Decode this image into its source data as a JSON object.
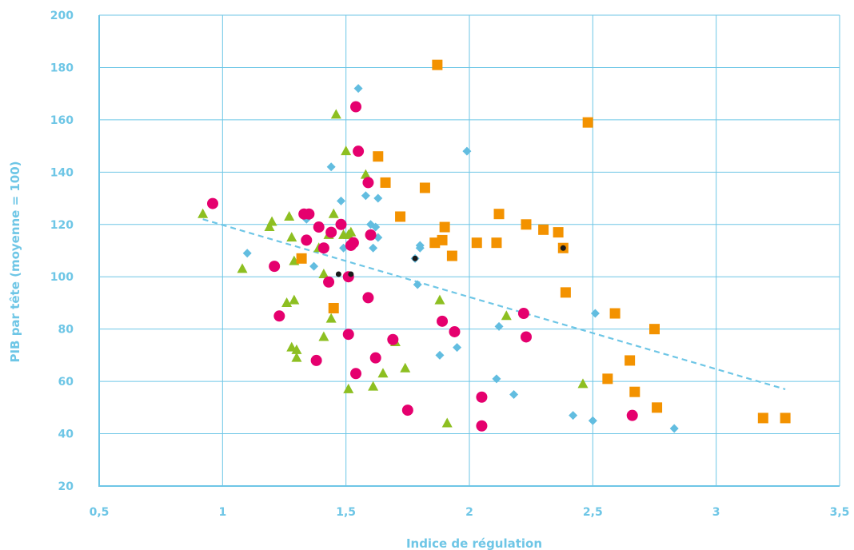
{
  "chart_data": {
    "type": "scatter",
    "title": "",
    "xlabel": "Indice de régulation",
    "ylabel": "PIB par tête (moyenne = 100)",
    "xlim": [
      0.5,
      3.5
    ],
    "ylim": [
      20,
      200
    ],
    "x_ticks": [
      "0,5",
      "1",
      "1,5",
      "2",
      "2,5",
      "3",
      "3,5"
    ],
    "y_ticks": [
      "20",
      "40",
      "60",
      "80",
      "100",
      "120",
      "140",
      "160",
      "180",
      "200"
    ],
    "grid": true,
    "legend": "none",
    "colors": {
      "axis": "#6ec6e6",
      "diamond": "#62bde0",
      "circle": "#e5006e",
      "triangle": "#8dbf21",
      "square": "#f39200",
      "black_dot": "#1a1a1a",
      "trend": "#6ec6e6"
    },
    "trendline": {
      "x": [
        0.92,
        3.28
      ],
      "y": [
        122,
        57
      ]
    },
    "series": [
      {
        "marker": "diamond",
        "x": [
          1.1,
          1.34,
          1.37,
          1.44,
          1.48,
          1.49,
          1.55,
          1.58,
          1.6,
          1.61,
          1.62,
          1.63,
          1.63,
          1.78,
          1.79,
          1.8,
          1.8,
          1.88,
          1.95,
          1.99,
          2.11,
          2.12,
          2.18,
          2.42,
          2.5,
          2.51,
          2.83
        ],
        "y": [
          109,
          122,
          104,
          142,
          129,
          111,
          172,
          131,
          120,
          111,
          119,
          115,
          130,
          107,
          97,
          111,
          112,
          70,
          73,
          148,
          61,
          81,
          55,
          47,
          45,
          86,
          42
        ]
      },
      {
        "marker": "circle",
        "x": [
          0.96,
          1.21,
          1.23,
          1.33,
          1.34,
          1.35,
          1.38,
          1.39,
          1.41,
          1.43,
          1.44,
          1.48,
          1.51,
          1.51,
          1.52,
          1.53,
          1.54,
          1.54,
          1.55,
          1.59,
          1.59,
          1.6,
          1.62,
          1.69,
          1.75,
          1.89,
          1.94,
          2.05,
          2.05,
          2.22,
          2.23,
          2.66
        ],
        "y": [
          128,
          104,
          85,
          124,
          114,
          124,
          68,
          119,
          111,
          98,
          117,
          120,
          78,
          100,
          112,
          113,
          165,
          63,
          148,
          136,
          92,
          116,
          69,
          76,
          49,
          83,
          79,
          54,
          43,
          86,
          77,
          47
        ]
      },
      {
        "marker": "triangle",
        "x": [
          0.92,
          1.08,
          1.19,
          1.2,
          1.26,
          1.27,
          1.28,
          1.28,
          1.29,
          1.29,
          1.3,
          1.3,
          1.39,
          1.41,
          1.41,
          1.43,
          1.44,
          1.45,
          1.46,
          1.49,
          1.5,
          1.51,
          1.51,
          1.52,
          1.58,
          1.61,
          1.65,
          1.7,
          1.74,
          1.88,
          1.91,
          2.15,
          2.46
        ],
        "y": [
          124,
          103,
          119,
          121,
          90,
          123,
          115,
          73,
          91,
          106,
          69,
          72,
          111,
          77,
          101,
          116,
          84,
          124,
          162,
          116,
          148,
          57,
          116,
          117,
          139,
          58,
          63,
          75,
          65,
          91,
          44,
          85,
          59
        ]
      },
      {
        "marker": "square",
        "x": [
          1.32,
          1.45,
          1.63,
          1.66,
          1.72,
          1.82,
          1.86,
          1.87,
          1.89,
          1.9,
          1.93,
          2.03,
          2.11,
          2.12,
          2.23,
          2.3,
          2.36,
          2.38,
          2.39,
          2.48,
          2.56,
          2.59,
          2.65,
          2.67,
          2.75,
          2.76,
          3.19,
          3.28
        ],
        "y": [
          107,
          88,
          146,
          136,
          123,
          134,
          113,
          181,
          114,
          119,
          108,
          113,
          113,
          124,
          120,
          118,
          117,
          111,
          94,
          159,
          61,
          86,
          68,
          56,
          80,
          50,
          46,
          46
        ]
      },
      {
        "marker": "dot",
        "x": [
          1.47,
          1.52,
          1.78,
          2.38
        ],
        "y": [
          101,
          101,
          107,
          111
        ]
      }
    ]
  }
}
